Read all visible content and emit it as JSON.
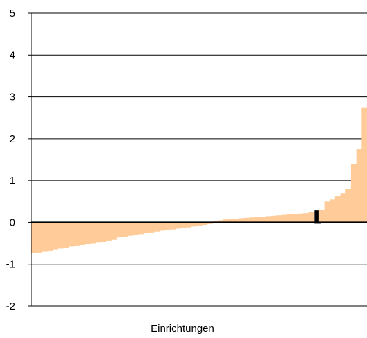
{
  "chart_data": {
    "type": "bar",
    "title": "",
    "xlabel": "Einrichtungen",
    "ylabel": "",
    "ylim": [
      -2,
      5
    ],
    "yticks": [
      5,
      4,
      3,
      2,
      1,
      0,
      -1,
      -2
    ],
    "yticks_labels": [
      "5",
      "4",
      "3",
      "2",
      "1",
      "0",
      "-1",
      "-2"
    ],
    "grid": "horizontal",
    "colors": {
      "bars": "#FFCC99",
      "highlight": "#000000",
      "grid": "#000000"
    },
    "series": [
      {
        "values": [
          -0.73,
          -0.72,
          -0.7,
          -0.68,
          -0.65,
          -0.63,
          -0.61,
          -0.58,
          -0.56,
          -0.54,
          -0.52,
          -0.5,
          -0.48,
          -0.46,
          -0.44,
          -0.42,
          -0.36,
          -0.34,
          -0.32,
          -0.3,
          -0.28,
          -0.26,
          -0.24,
          -0.22,
          -0.2,
          -0.18,
          -0.17,
          -0.15,
          -0.14,
          -0.12,
          -0.1,
          -0.08,
          -0.06,
          -0.04,
          0.03,
          0.05,
          0.07,
          0.08,
          0.09,
          0.1,
          0.11,
          0.12,
          0.13,
          0.14,
          0.15,
          0.16,
          0.17,
          0.18,
          0.19,
          0.2,
          0.21,
          0.22,
          0.24,
          0.27,
          0.3,
          0.5,
          0.55,
          0.62,
          0.7,
          0.8,
          1.4,
          1.75,
          2.75
        ],
        "highlight_index": 53
      }
    ]
  }
}
